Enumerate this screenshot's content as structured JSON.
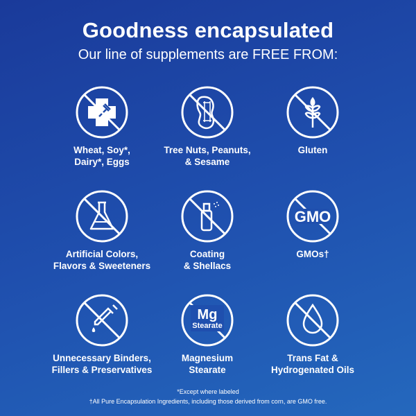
{
  "header": {
    "title": "Goodness encapsulated",
    "subtitle": "Our line of supplements are FREE FROM:"
  },
  "items": [
    {
      "icon": "allergen-cross-fork-icon",
      "label1": "Wheat, Soy*,",
      "label2": "Dairy*, Eggs"
    },
    {
      "icon": "peanut-icon",
      "label1": "Tree Nuts, Peanuts,",
      "label2": "& Sesame"
    },
    {
      "icon": "wheat-icon",
      "label1": "Gluten",
      "label2": ""
    },
    {
      "icon": "flask-icon",
      "label1": "Artificial Colors,",
      "label2": "Flavors & Sweeteners"
    },
    {
      "icon": "spray-bottle-icon",
      "label1": "Coating",
      "label2": "& Shellacs"
    },
    {
      "icon": "gmo-icon",
      "icon_text": "GMO",
      "label1": "GMOs†",
      "label2": ""
    },
    {
      "icon": "dropper-icon",
      "label1": "Unnecessary Binders,",
      "label2": "Fillers & Preservatives"
    },
    {
      "icon": "mg-stearate-icon",
      "icon_text": "Mg",
      "icon_subtext": "Stearate",
      "label1": "Magnesium",
      "label2": "Stearate"
    },
    {
      "icon": "oil-drop-icon",
      "label1": "Trans Fat &",
      "label2": "Hydrogenated Oils"
    }
  ],
  "footnotes": {
    "line1": "*Except where labeled",
    "line2": "†All Pure Encapsulation Ingredients, including those derived from corn, are GMO free."
  },
  "colors": {
    "bg_start": "#1a3a9a",
    "bg_end": "#2468bd",
    "foreground": "#ffffff"
  }
}
